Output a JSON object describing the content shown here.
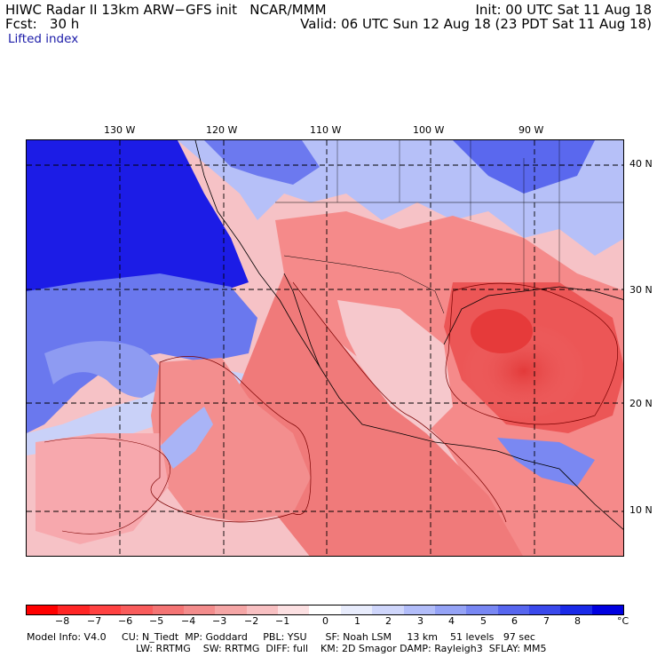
{
  "header": {
    "title_left": "HIWC Radar II 13km ARW−GFS init   NCAR/MMM",
    "init": "Init: 00 UTC Sat 11 Aug 18",
    "fcst": "Fcst:   30 h",
    "valid": "Valid: 06 UTC Sun 12 Aug 18 (23 PDT Sat 11 Aug 18)",
    "field": "Lifted index"
  },
  "map": {
    "lon_labels": [
      "130 W",
      "120 W",
      "110 W",
      "100 W",
      "90 W"
    ],
    "lat_labels": [
      "40 N",
      "30 N",
      "20 N",
      "10 N"
    ]
  },
  "legend": {
    "labels": [
      "−8",
      "−7",
      "−6",
      "−5",
      "−4",
      "−3",
      "−2",
      "−1",
      "0",
      "1",
      "2",
      "3",
      "4",
      "5",
      "6",
      "7",
      "8"
    ],
    "unit": "°C",
    "colors": [
      "#ff0000",
      "#ff2626",
      "#ff4242",
      "#f95c5c",
      "#f47474",
      "#f38c8c",
      "#f5a6a6",
      "#f8c0c2",
      "#fce0e2",
      "#ffffff",
      "#e8ecfc",
      "#cfd6fb",
      "#b2bdf9",
      "#95a3f6",
      "#7887f3",
      "#5766ef",
      "#3a49ec",
      "#1a2ae8",
      "#0000e0"
    ]
  },
  "footer": {
    "line1": "Model Info: V4.0     CU: N_Tiedt  MP: Goddard     PBL: YSU      SF: Noah LSM     13 km    51 levels   97 sec",
    "line2": "LW: RRTMG    SW: RRTMG  DIFF: full    KM: 2D Smagor DAMP: Rayleigh3  SFLAY: MM5"
  }
}
